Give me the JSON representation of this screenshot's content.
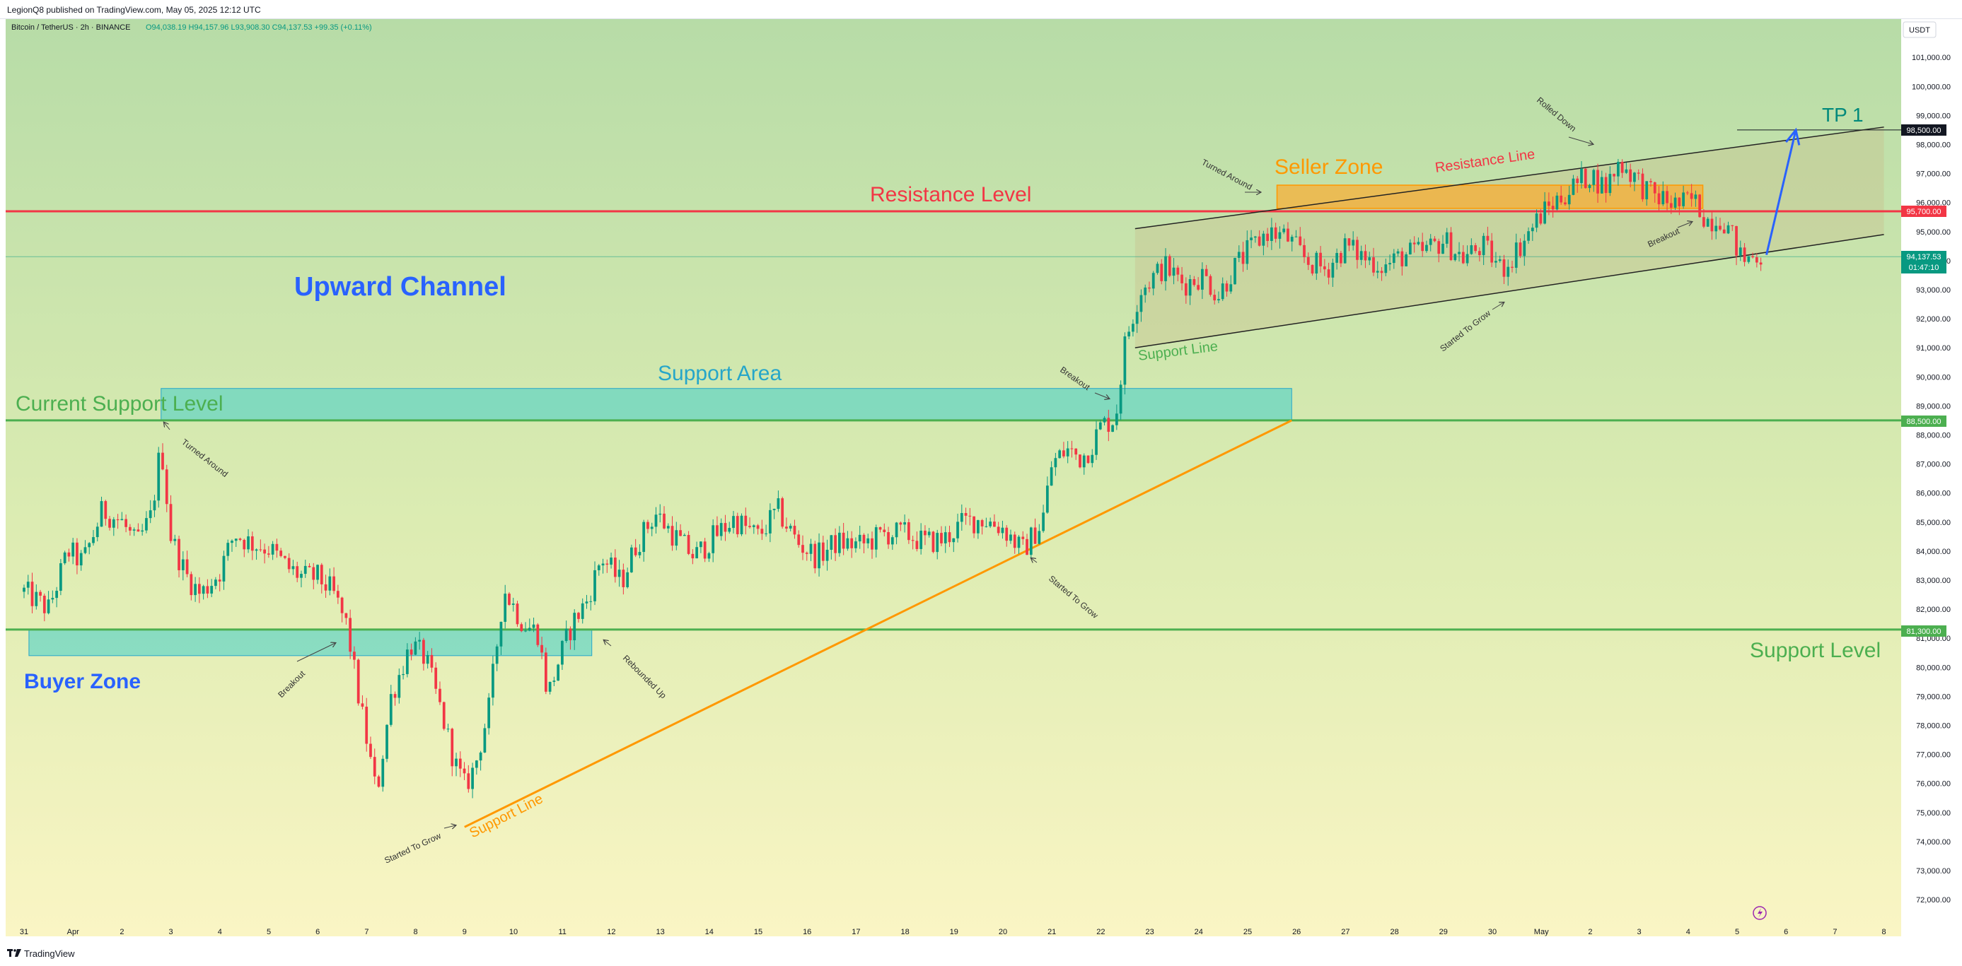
{
  "header": {
    "published": "LegionQ8 published on TradingView.com, May 05, 2025 12:12 UTC",
    "symbol": "Bitcoin / TetherUS · 2h · BINANCE",
    "ohlc": "O94,038.19 H94,157.96 L93,908.30 C94,137.53 +99.35 (+0.11%)"
  },
  "footer": {
    "brand": "TradingView"
  },
  "currency_button": "USDT",
  "price_tags": {
    "tp": "98,500.00",
    "resistance": "95,700.00",
    "current_price": "94,137.53",
    "countdown": "01:47:10",
    "current_support": "88,500.00",
    "support": "81,300.00"
  },
  "annotations": {
    "upward_channel": "Upward Channel",
    "resistance_level": "Resistance Level",
    "current_support_level": "Current Support Level",
    "support_area": "Support Area",
    "buyer_zone": "Buyer Zone",
    "seller_zone": "Seller Zone",
    "resistance_line": "Resistance Line",
    "support_line_upper": "Support Line",
    "support_line_lower": "Support Line",
    "support_level": "Support Level",
    "tp1": "TP 1",
    "turned_around_1": "Turned Around",
    "turned_around_2": "Turned Around",
    "breakout_1": "Breakout",
    "breakout_2": "Breakout",
    "breakout_3": "Breakout",
    "rebounded_up": "Rebounded Up",
    "started_to_grow_1": "Started To Grow",
    "started_to_grow_2": "Started To Grow",
    "started_to_grow_3": "Started To Grow",
    "rolled_down": "Rolled Down"
  },
  "colors": {
    "bull": "#089981",
    "bear": "#f23645",
    "resistance": "#f23645",
    "support": "#4caf50",
    "blue": "#2962ff",
    "orange": "#ff9800",
    "teal": "#00897b",
    "zone_teal": "#4dd0c8",
    "seller": "#ffa726"
  },
  "chart_data": {
    "type": "candlestick",
    "symbol": "BTCUSDT",
    "interval": "2h",
    "ylim": [
      71000,
      102000
    ],
    "y_ticks": [
      72000,
      73000,
      74000,
      75000,
      76000,
      77000,
      78000,
      79000,
      80000,
      81000,
      82000,
      83000,
      84000,
      85000,
      86000,
      87000,
      88000,
      89000,
      90000,
      91000,
      92000,
      93000,
      94000,
      95000,
      96000,
      97000,
      98000,
      99000,
      100000,
      101000
    ],
    "y_tick_labels": [
      "72,000.00",
      "73,000.00",
      "74,000.00",
      "75,000.00",
      "76,000.00",
      "77,000.00",
      "78,000.00",
      "79,000.00",
      "80,000.00",
      "81,000.00",
      "82,000.00",
      "83,000.00",
      "84,000.00",
      "85,000.00",
      "86,000.00",
      "87,000.00",
      "88,000.00",
      "89,000.00",
      "90,000.00",
      "91,000.00",
      "92,000.00",
      "93,000.00",
      "94,000.00",
      "95,000.00",
      "96,000.00",
      "97,000.00",
      "98,000.00",
      "99,000.00",
      "100,000.00",
      "101,000.00"
    ],
    "x_range_days": [
      -0.3,
      38.3
    ],
    "x_ticks": [
      {
        "d": 0,
        "label": "31"
      },
      {
        "d": 1,
        "label": "Apr"
      },
      {
        "d": 2,
        "label": "2"
      },
      {
        "d": 3,
        "label": "3"
      },
      {
        "d": 4,
        "label": "4"
      },
      {
        "d": 5,
        "label": "5"
      },
      {
        "d": 6,
        "label": "6"
      },
      {
        "d": 7,
        "label": "7"
      },
      {
        "d": 8,
        "label": "8"
      },
      {
        "d": 9,
        "label": "9"
      },
      {
        "d": 10,
        "label": "10"
      },
      {
        "d": 11,
        "label": "11"
      },
      {
        "d": 12,
        "label": "12"
      },
      {
        "d": 13,
        "label": "13"
      },
      {
        "d": 14,
        "label": "14"
      },
      {
        "d": 15,
        "label": "15"
      },
      {
        "d": 16,
        "label": "16"
      },
      {
        "d": 17,
        "label": "17"
      },
      {
        "d": 18,
        "label": "18"
      },
      {
        "d": 19,
        "label": "19"
      },
      {
        "d": 20,
        "label": "20"
      },
      {
        "d": 21,
        "label": "21"
      },
      {
        "d": 22,
        "label": "22"
      },
      {
        "d": 23,
        "label": "23"
      },
      {
        "d": 24,
        "label": "24"
      },
      {
        "d": 25,
        "label": "25"
      },
      {
        "d": 26,
        "label": "26"
      },
      {
        "d": 27,
        "label": "27"
      },
      {
        "d": 28,
        "label": "28"
      },
      {
        "d": 29,
        "label": "29"
      },
      {
        "d": 30,
        "label": "30"
      },
      {
        "d": 31,
        "label": "May"
      },
      {
        "d": 32,
        "label": "2"
      },
      {
        "d": 33,
        "label": "3"
      },
      {
        "d": 34,
        "label": "4"
      },
      {
        "d": 35,
        "label": "5"
      },
      {
        "d": 36,
        "label": "6"
      },
      {
        "d": 37,
        "label": "7"
      },
      {
        "d": 38,
        "label": "8"
      }
    ],
    "price_path": [
      [
        0,
        82600
      ],
      [
        0.5,
        82000
      ],
      [
        0.9,
        84000
      ],
      [
        1.2,
        83600
      ],
      [
        1.6,
        85400
      ],
      [
        2.0,
        85000
      ],
      [
        2.3,
        84200
      ],
      [
        2.6,
        85200
      ],
      [
        2.8,
        87700
      ],
      [
        3.0,
        84500
      ],
      [
        3.3,
        83200
      ],
      [
        3.6,
        82500
      ],
      [
        4.0,
        83300
      ],
      [
        4.3,
        84600
      ],
      [
        4.6,
        84300
      ],
      [
        5.0,
        84100
      ],
      [
        5.4,
        83400
      ],
      [
        5.7,
        83100
      ],
      [
        6.0,
        83100
      ],
      [
        6.3,
        82600
      ],
      [
        6.6,
        81400
      ],
      [
        6.8,
        79300
      ],
      [
        7.0,
        77500
      ],
      [
        7.2,
        75600
      ],
      [
        7.5,
        79000
      ],
      [
        7.9,
        80800
      ],
      [
        8.2,
        80300
      ],
      [
        8.5,
        78600
      ],
      [
        8.8,
        76700
      ],
      [
        9.0,
        75900
      ],
      [
        9.2,
        76500
      ],
      [
        9.5,
        78600
      ],
      [
        9.8,
        82700
      ],
      [
        10.2,
        81500
      ],
      [
        10.5,
        81200
      ],
      [
        10.7,
        79000
      ],
      [
        10.9,
        80100
      ],
      [
        11.2,
        81500
      ],
      [
        11.5,
        82300
      ],
      [
        11.8,
        83800
      ],
      [
        12.2,
        82900
      ],
      [
        12.5,
        84200
      ],
      [
        12.9,
        85300
      ],
      [
        13.3,
        84500
      ],
      [
        13.7,
        83800
      ],
      [
        14.1,
        84500
      ],
      [
        14.5,
        85100
      ],
      [
        15.0,
        84500
      ],
      [
        15.4,
        85400
      ],
      [
        15.8,
        84300
      ],
      [
        16.2,
        83800
      ],
      [
        16.6,
        84300
      ],
      [
        17.1,
        84200
      ],
      [
        17.6,
        84600
      ],
      [
        18.0,
        84600
      ],
      [
        18.4,
        84300
      ],
      [
        18.8,
        84400
      ],
      [
        19.2,
        85000
      ],
      [
        19.6,
        85100
      ],
      [
        20.0,
        84800
      ],
      [
        20.4,
        84000
      ],
      [
        20.8,
        85000
      ],
      [
        21.0,
        87000
      ],
      [
        21.3,
        87500
      ],
      [
        21.6,
        87200
      ],
      [
        21.8,
        87600
      ],
      [
        22.0,
        88300
      ],
      [
        22.3,
        88600
      ],
      [
        22.5,
        91200
      ],
      [
        22.8,
        93000
      ],
      [
        23.3,
        93800
      ],
      [
        23.7,
        93200
      ],
      [
        24.1,
        93500
      ],
      [
        24.4,
        92800
      ],
      [
        24.7,
        93700
      ],
      [
        25.0,
        94300
      ],
      [
        25.4,
        95000
      ],
      [
        25.8,
        94800
      ],
      [
        26.2,
        94000
      ],
      [
        26.6,
        93700
      ],
      [
        27.0,
        94500
      ],
      [
        27.4,
        94100
      ],
      [
        27.8,
        93800
      ],
      [
        28.2,
        94200
      ],
      [
        28.6,
        94300
      ],
      [
        29.0,
        94700
      ],
      [
        29.4,
        94100
      ],
      [
        29.8,
        94500
      ],
      [
        30.2,
        93700
      ],
      [
        30.6,
        94600
      ],
      [
        31.0,
        95600
      ],
      [
        31.4,
        96200
      ],
      [
        31.7,
        96600
      ],
      [
        32.0,
        97000
      ],
      [
        32.3,
        96500
      ],
      [
        32.6,
        97400
      ],
      [
        32.9,
        96900
      ],
      [
        33.2,
        96300
      ],
      [
        33.5,
        96100
      ],
      [
        33.8,
        95900
      ],
      [
        34.1,
        96100
      ],
      [
        34.4,
        95400
      ],
      [
        34.7,
        95500
      ],
      [
        34.9,
        94800
      ],
      [
        35.1,
        94000
      ],
      [
        35.4,
        94200
      ],
      [
        35.5,
        94137
      ]
    ],
    "candle_count": 420,
    "candle_spacing_days": 0.0833,
    "levels": {
      "resistance": 95700,
      "current_support": 88500,
      "support": 81300,
      "tp": 98500
    },
    "channel": {
      "upper": [
        [
          22.7,
          95100
        ],
        [
          38.0,
          98600
        ]
      ],
      "lower": [
        [
          22.7,
          91000
        ],
        [
          38.0,
          94900
        ]
      ]
    },
    "support_line_orange": [
      [
        9.0,
        74500
      ],
      [
        25.9,
        88500
      ]
    ],
    "support_area": {
      "x": [
        2.8,
        25.9
      ],
      "y": [
        88500,
        89600
      ]
    },
    "buyer_zone": {
      "x": [
        0.1,
        11.6
      ],
      "y": [
        80400,
        81300
      ]
    },
    "seller_zone": {
      "x": [
        25.6,
        34.3
      ],
      "y": [
        95800,
        96600
      ]
    },
    "tp_arrow": [
      [
        35.6,
        94200
      ],
      [
        36.2,
        98500
      ]
    ]
  }
}
